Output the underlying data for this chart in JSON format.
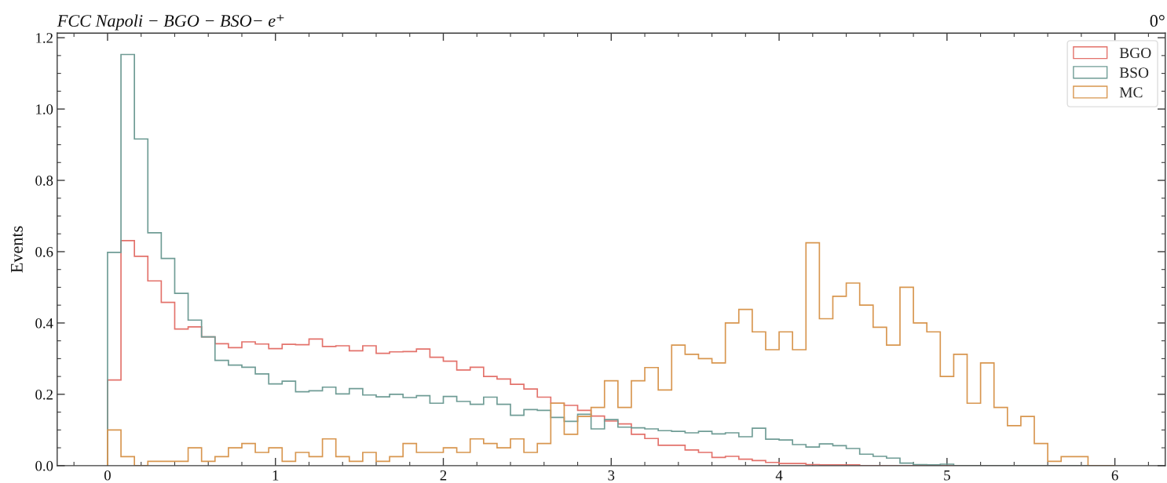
{
  "chart_data": {
    "type": "histogram",
    "title": "FCC Napoli − BGO − BSO− e⁺",
    "ylabel": "Events",
    "annotations": [
      "0°"
    ],
    "bins": [
      0,
      0.08,
      0.16,
      0.24,
      0.32,
      0.4,
      0.48,
      0.56,
      0.64,
      0.72,
      0.8,
      0.88,
      0.96,
      1.04,
      1.12,
      1.2,
      1.28,
      1.36,
      1.44,
      1.52,
      1.6,
      1.68,
      1.76,
      1.84,
      1.92,
      2.0,
      2.08,
      2.16,
      2.24,
      2.32,
      2.4,
      2.48,
      2.56,
      2.64,
      2.72,
      2.8,
      2.88,
      2.96,
      3.04,
      3.12,
      3.2,
      3.28,
      3.36,
      3.44,
      3.52,
      3.6,
      3.68,
      3.76,
      3.84,
      3.92,
      4.0,
      4.08,
      4.16,
      4.24,
      4.32,
      4.4,
      4.48,
      4.56,
      4.64,
      4.72,
      4.8,
      4.88,
      4.96,
      5.04,
      5.12,
      5.2,
      5.28,
      5.36,
      5.44,
      5.52,
      5.6,
      5.68,
      5.76,
      5.84,
      5.92,
      6.0
    ],
    "series": [
      {
        "name": "BGO",
        "color": "#e3726b",
        "values": [
          0.24,
          0.631,
          0.587,
          0.518,
          0.458,
          0.383,
          0.389,
          0.361,
          0.342,
          0.331,
          0.347,
          0.341,
          0.328,
          0.34,
          0.339,
          0.355,
          0.334,
          0.336,
          0.322,
          0.336,
          0.315,
          0.319,
          0.32,
          0.327,
          0.304,
          0.293,
          0.268,
          0.276,
          0.25,
          0.243,
          0.228,
          0.215,
          0.192,
          0.175,
          0.169,
          0.155,
          0.139,
          0.125,
          0.117,
          0.088,
          0.076,
          0.057,
          0.057,
          0.044,
          0.037,
          0.023,
          0.026,
          0.018,
          0.014,
          0.009,
          0.006,
          0.006,
          0.003,
          0.002,
          0.002,
          0.002,
          0,
          0,
          0,
          0,
          0,
          0,
          0,
          0,
          0,
          0,
          0,
          0,
          0,
          0,
          0,
          0,
          0,
          0,
          0
        ]
      },
      {
        "name": "BSO",
        "color": "#6f9c95",
        "values": [
          0.598,
          1.153,
          0.916,
          0.653,
          0.581,
          0.483,
          0.408,
          0.361,
          0.295,
          0.282,
          0.276,
          0.257,
          0.229,
          0.237,
          0.207,
          0.21,
          0.22,
          0.201,
          0.216,
          0.198,
          0.193,
          0.2,
          0.191,
          0.196,
          0.175,
          0.194,
          0.18,
          0.172,
          0.192,
          0.172,
          0.141,
          0.157,
          0.155,
          0.135,
          0.124,
          0.144,
          0.103,
          0.129,
          0.108,
          0.106,
          0.103,
          0.098,
          0.096,
          0.092,
          0.096,
          0.089,
          0.092,
          0.081,
          0.105,
          0.074,
          0.072,
          0.059,
          0.052,
          0.061,
          0.056,
          0.048,
          0.032,
          0.026,
          0.021,
          0.007,
          0.003,
          0.002,
          0.004,
          0,
          0,
          0,
          0,
          0,
          0,
          0,
          0,
          0,
          0,
          0,
          0
        ]
      },
      {
        "name": "MC",
        "color": "#d8964f",
        "values": [
          0.1,
          0.025,
          0,
          0.012,
          0.012,
          0.012,
          0.05,
          0.012,
          0.025,
          0.05,
          0.062,
          0.037,
          0.05,
          0.012,
          0.037,
          0.025,
          0.075,
          0.025,
          0.012,
          0.037,
          0.012,
          0.025,
          0.062,
          0.037,
          0.037,
          0.05,
          0.037,
          0.075,
          0.062,
          0.05,
          0.075,
          0.037,
          0.062,
          0.175,
          0.088,
          0.138,
          0.163,
          0.238,
          0.163,
          0.238,
          0.275,
          0.212,
          0.338,
          0.312,
          0.3,
          0.288,
          0.4,
          0.438,
          0.375,
          0.325,
          0.375,
          0.325,
          0.625,
          0.412,
          0.475,
          0.512,
          0.45,
          0.388,
          0.338,
          0.5,
          0.4,
          0.375,
          0.25,
          0.312,
          0.175,
          0.288,
          0.163,
          0.112,
          0.138,
          0.062,
          0.012,
          0.025,
          0.025,
          0,
          0
        ]
      }
    ],
    "xlim": [
      -0.3,
      6.3
    ],
    "xticks": [
      {
        "value": -0.2,
        "label": null
      },
      0,
      {
        "value": 0.2,
        "label": null
      },
      {
        "value": 0.4,
        "label": null
      },
      {
        "value": 0.6,
        "label": null
      },
      {
        "value": 0.8,
        "label": null
      },
      1,
      {
        "value": 1.2,
        "label": null
      },
      {
        "value": 1.4,
        "label": null
      },
      {
        "value": 1.6,
        "label": null
      },
      {
        "value": 1.8,
        "label": null
      },
      2,
      {
        "value": 2.2,
        "label": null
      },
      {
        "value": 2.4,
        "label": null
      },
      {
        "value": 2.6,
        "label": null
      },
      {
        "value": 2.8,
        "label": null
      },
      3,
      {
        "value": 3.2,
        "label": null
      },
      {
        "value": 3.4,
        "label": null
      },
      {
        "value": 3.6,
        "label": null
      },
      {
        "value": 3.8,
        "label": null
      },
      4,
      {
        "value": 4.2,
        "label": null
      },
      {
        "value": 4.4,
        "label": null
      },
      {
        "value": 4.6,
        "label": null
      },
      {
        "value": 4.8,
        "label": null
      },
      5,
      {
        "value": 5.2,
        "label": null
      },
      {
        "value": 5.4,
        "label": null
      },
      {
        "value": 5.6,
        "label": null
      },
      {
        "value": 5.8,
        "label": null
      },
      6,
      {
        "value": 6.2,
        "label": null
      }
    ],
    "ylim": [
      0,
      1.213
    ],
    "yticks": [
      {
        "value": 0,
        "label": "0.0"
      },
      {
        "value": 0.05,
        "label": null
      },
      {
        "value": 0.1,
        "label": null
      },
      {
        "value": 0.15,
        "label": null
      },
      {
        "value": 0.2,
        "label": "0.2"
      },
      {
        "value": 0.25,
        "label": null
      },
      {
        "value": 0.3,
        "label": null
      },
      {
        "value": 0.35,
        "label": null
      },
      {
        "value": 0.4,
        "label": "0.4"
      },
      {
        "value": 0.45,
        "label": null
      },
      {
        "value": 0.5,
        "label": null
      },
      {
        "value": 0.55,
        "label": null
      },
      {
        "value": 0.6,
        "label": "0.6"
      },
      {
        "value": 0.65,
        "label": null
      },
      {
        "value": 0.7,
        "label": null
      },
      {
        "value": 0.75,
        "label": null
      },
      {
        "value": 0.8,
        "label": "0.8"
      },
      {
        "value": 0.85,
        "label": null
      },
      {
        "value": 0.9,
        "label": null
      },
      {
        "value": 0.95,
        "label": null
      },
      {
        "value": 1.0,
        "label": "1.0"
      },
      {
        "value": 1.05,
        "label": null
      },
      {
        "value": 1.1,
        "label": null
      },
      {
        "value": 1.15,
        "label": null
      },
      {
        "value": 1.2,
        "label": "1.2"
      }
    ],
    "legend": "top right"
  }
}
